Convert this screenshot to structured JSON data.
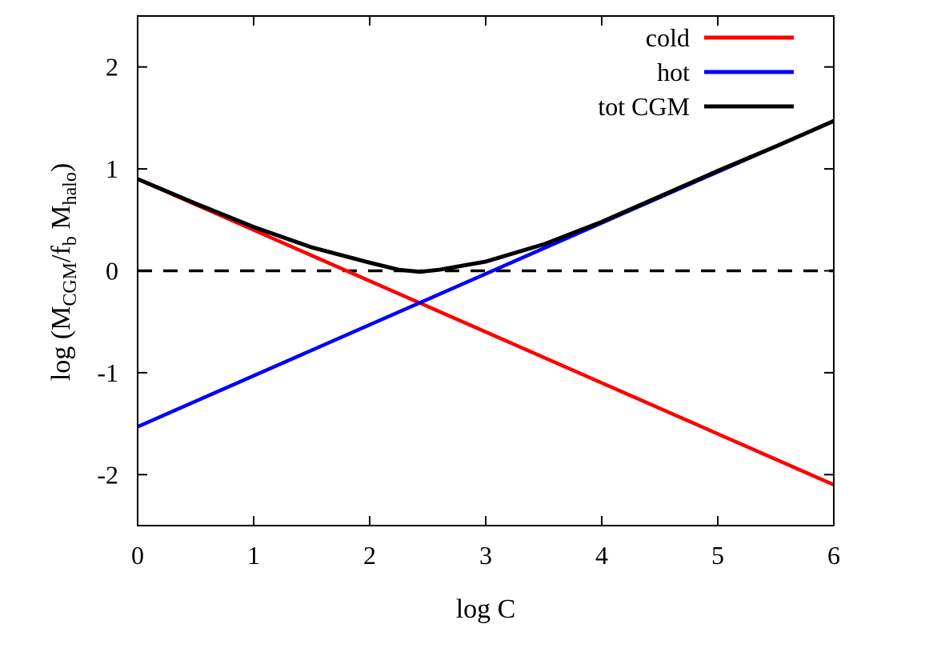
{
  "chart_data": {
    "type": "line",
    "xlabel": "log C",
    "ylabel": {
      "prefix": "log (M",
      "sub1": "CGM",
      "mid1": "/f",
      "sub2": "b",
      "mid2": " M",
      "sub3": "halo",
      "suffix": ")"
    },
    "xlim": [
      0,
      6
    ],
    "ylim": [
      -2.5,
      2.5
    ],
    "xticks": [
      0,
      1,
      2,
      3,
      4,
      5,
      6
    ],
    "xtick_labels": [
      "0",
      "1",
      "2",
      "3",
      "4",
      "5",
      "6"
    ],
    "yticks": [
      -2,
      -1,
      0,
      1,
      2
    ],
    "ytick_labels": [
      "-2",
      "-1",
      "0",
      "1",
      "2"
    ],
    "legend_position": "top-right",
    "reference_line": {
      "y": 0,
      "style": "dashed",
      "color": "#000000"
    },
    "series": [
      {
        "name": "cold",
        "color": "#ff0000",
        "x": [
          0,
          6
        ],
        "y": [
          0.9,
          -2.1
        ]
      },
      {
        "name": "hot",
        "color": "#0000ff",
        "x": [
          0,
          6
        ],
        "y": [
          -1.53,
          1.47
        ]
      },
      {
        "name": "tot CGM",
        "color": "#000000",
        "x": [
          0,
          0.5,
          1,
          1.5,
          2,
          2.25,
          2.43,
          2.6,
          3,
          3.5,
          4,
          4.5,
          5,
          5.5,
          6
        ],
        "y": [
          0.9,
          0.66,
          0.43,
          0.23,
          0.08,
          0.01,
          -0.01,
          0.01,
          0.09,
          0.26,
          0.48,
          0.73,
          0.98,
          1.22,
          1.47
        ]
      }
    ]
  }
}
